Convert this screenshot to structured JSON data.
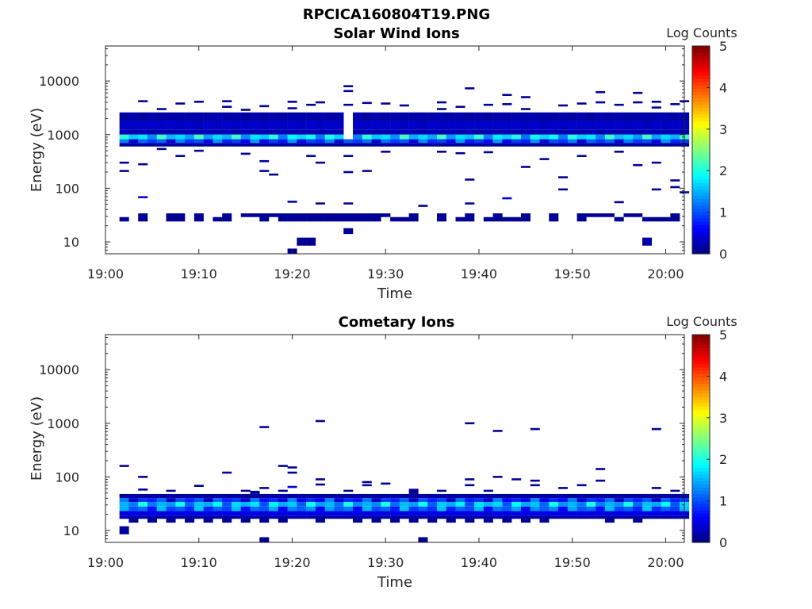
{
  "figure": {
    "title": "RPCICA160804T19.PNG"
  },
  "chart_data": [
    {
      "type": "heatmap",
      "title": "Solar Wind Ions",
      "xlabel": "Time",
      "ylabel": "Energy (eV)",
      "y_scale": "log",
      "xlim": [
        "19:00",
        "20:02"
      ],
      "ylim": [
        6,
        45000
      ],
      "x_ticks": [
        "19:00",
        "19:10",
        "19:20",
        "19:30",
        "19:40",
        "19:50",
        "20:00"
      ],
      "y_ticks": [
        "10",
        "100",
        "1000",
        "10000"
      ],
      "colorbar": {
        "label": "Log Counts",
        "range": [
          0,
          5
        ],
        "ticks": [
          "0",
          "1",
          "2",
          "3",
          "4",
          "5"
        ],
        "colormap": "jet"
      },
      "band_rows": [
        {
          "e_low": 1800,
          "e_high": 2600,
          "base": 0.15
        },
        {
          "e_low": 1250,
          "e_high": 1800,
          "base": 0.3
        },
        {
          "e_low": 1000,
          "e_high": 1250,
          "base": 0.2
        },
        {
          "e_low": 820,
          "e_high": 1000,
          "base": 1.6
        },
        {
          "e_low": 700,
          "e_high": 820,
          "base": 0.8
        },
        {
          "e_low": 600,
          "e_high": 700,
          "base": 0.1
        }
      ],
      "sparse": [
        [
          "19:02",
          300,
          0.1
        ],
        [
          "19:02",
          210,
          0.1
        ],
        [
          "19:04",
          4200,
          0.1
        ],
        [
          "19:04",
          280,
          0.1
        ],
        [
          "19:04",
          68,
          0.4
        ],
        [
          "19:06",
          3000,
          0.1
        ],
        [
          "19:06",
          540,
          0.1
        ],
        [
          "19:08",
          3800,
          0.1
        ],
        [
          "19:08",
          400,
          0.1
        ],
        [
          "19:10",
          4100,
          0.1
        ],
        [
          "19:10",
          500,
          0.1
        ],
        [
          "19:13",
          4200,
          0.1
        ],
        [
          "19:13",
          3300,
          0.1
        ],
        [
          "19:15",
          2900,
          0.1
        ],
        [
          "19:15",
          440,
          0.1
        ],
        [
          "19:17",
          3400,
          0.1
        ],
        [
          "19:17",
          320,
          0.1
        ],
        [
          "19:17",
          210,
          0.1
        ],
        [
          "19:18",
          180,
          0.1
        ],
        [
          "19:20",
          4100,
          0.1
        ],
        [
          "19:20",
          3100,
          0.1
        ],
        [
          "19:20",
          56,
          0.1
        ],
        [
          "19:22",
          3600,
          0.1
        ],
        [
          "19:22",
          400,
          0.1
        ],
        [
          "19:23",
          4000,
          0.1
        ],
        [
          "19:23",
          300,
          0.1
        ],
        [
          "19:23",
          52,
          0.1
        ],
        [
          "19:26",
          8000,
          0.1
        ],
        [
          "19:26",
          6500,
          0.1
        ],
        [
          "19:26",
          3600,
          0.1
        ],
        [
          "19:26",
          400,
          0.1
        ],
        [
          "19:26",
          200,
          0.1
        ],
        [
          "19:26",
          52,
          0.1
        ],
        [
          "19:28",
          3900,
          0.1
        ],
        [
          "19:28",
          210,
          0.1
        ],
        [
          "19:30",
          3800,
          0.1
        ],
        [
          "19:30",
          480,
          0.1
        ],
        [
          "19:32",
          3500,
          0.1
        ],
        [
          "19:34",
          47,
          0.1
        ],
        [
          "19:36",
          4000,
          0.1
        ],
        [
          "19:36",
          3000,
          0.1
        ],
        [
          "19:36",
          480,
          0.1
        ],
        [
          "19:38",
          3300,
          0.1
        ],
        [
          "19:38",
          450,
          0.1
        ],
        [
          "19:39",
          7300,
          0.1
        ],
        [
          "19:39",
          145,
          0.1
        ],
        [
          "19:39",
          52,
          0.1
        ],
        [
          "19:41",
          3600,
          0.1
        ],
        [
          "19:41",
          470,
          0.1
        ],
        [
          "19:43",
          5500,
          0.1
        ],
        [
          "19:43",
          3700,
          0.1
        ],
        [
          "19:43",
          65,
          0.4
        ],
        [
          "19:45",
          5000,
          0.1
        ],
        [
          "19:45",
          3000,
          0.1
        ],
        [
          "19:45",
          250,
          0.1
        ],
        [
          "19:47",
          350,
          0.1
        ],
        [
          "19:49",
          3500,
          0.1
        ],
        [
          "19:49",
          160,
          0.1
        ],
        [
          "19:49",
          95,
          0.1
        ],
        [
          "19:51",
          3800,
          0.1
        ],
        [
          "19:51",
          400,
          0.1
        ],
        [
          "19:53",
          6200,
          0.1
        ],
        [
          "19:53",
          4000,
          0.1
        ],
        [
          "19:55",
          3600,
          0.1
        ],
        [
          "19:55",
          480,
          0.1
        ],
        [
          "19:55",
          55,
          0.1
        ],
        [
          "19:57",
          6000,
          0.1
        ],
        [
          "19:57",
          4000,
          0.1
        ],
        [
          "19:57",
          270,
          0.1
        ],
        [
          "19:59",
          4100,
          0.1
        ],
        [
          "19:59",
          3200,
          0.1
        ],
        [
          "19:59",
          300,
          0.1
        ],
        [
          "19:59",
          95,
          0.1
        ],
        [
          "20:01",
          3700,
          0.1
        ],
        [
          "20:01",
          140,
          0.1
        ],
        [
          "20:01",
          105,
          0.1
        ],
        [
          "20:02",
          4200,
          0.1
        ],
        [
          "20:02",
          84,
          0.1
        ]
      ],
      "blocks": [
        [
          "19:02",
          24,
          29,
          0.1
        ],
        [
          "19:04",
          24,
          34,
          0.1
        ],
        [
          "19:07",
          24,
          34,
          0.1
        ],
        [
          "19:08",
          24,
          34,
          0.1
        ],
        [
          "19:10",
          24,
          34,
          0.1
        ],
        [
          "19:12",
          24,
          29,
          0.1
        ],
        [
          "19:13",
          24,
          34,
          0.1
        ],
        [
          "19:15",
          29,
          34,
          0.1
        ],
        [
          "19:16",
          29,
          34,
          0.1
        ],
        [
          "19:17",
          24,
          34,
          0.1
        ],
        [
          "19:18",
          29,
          34,
          0.1
        ],
        [
          "19:19",
          24,
          34,
          0.1
        ],
        [
          "19:20",
          24,
          34,
          0.1
        ],
        [
          "19:21",
          24,
          34,
          0.1
        ],
        [
          "19:22",
          24,
          34,
          0.1
        ],
        [
          "19:23",
          24,
          34,
          0.1
        ],
        [
          "19:24",
          24,
          34,
          0.1
        ],
        [
          "19:25",
          24,
          34,
          0.1
        ],
        [
          "19:26",
          24,
          34,
          0.1
        ],
        [
          "19:27",
          24,
          34,
          0.1
        ],
        [
          "19:28",
          24,
          34,
          0.1
        ],
        [
          "19:29",
          24,
          34,
          0.1
        ],
        [
          "19:30",
          29,
          34,
          0.1
        ],
        [
          "19:31",
          24,
          29,
          0.1
        ],
        [
          "19:32",
          24,
          29,
          0.1
        ],
        [
          "19:33",
          24,
          34,
          0.1
        ],
        [
          "19:36",
          24,
          34,
          0.1
        ],
        [
          "19:38",
          24,
          29,
          0.1
        ],
        [
          "19:39",
          24,
          34,
          0.1
        ],
        [
          "19:41",
          24,
          29,
          0.1
        ],
        [
          "19:42",
          24,
          34,
          0.1
        ],
        [
          "19:43",
          24,
          29,
          0.1
        ],
        [
          "19:44",
          24,
          29,
          0.1
        ],
        [
          "19:45",
          24,
          34,
          0.1
        ],
        [
          "19:48",
          24,
          34,
          0.1
        ],
        [
          "19:51",
          24,
          34,
          0.1
        ],
        [
          "19:52",
          29,
          34,
          0.1
        ],
        [
          "19:53",
          29,
          34,
          0.1
        ],
        [
          "19:54",
          29,
          34,
          0.1
        ],
        [
          "19:55",
          24,
          29,
          0.1
        ],
        [
          "19:56",
          29,
          34,
          0.1
        ],
        [
          "19:57",
          29,
          34,
          0.1
        ],
        [
          "19:58",
          24,
          29,
          0.1
        ],
        [
          "19:59",
          24,
          29,
          0.1
        ],
        [
          "20:00",
          24,
          29,
          0.1
        ],
        [
          "20:01",
          24,
          34,
          0.1
        ],
        [
          "19:26",
          14,
          18,
          0.1
        ],
        [
          "19:21",
          8.5,
          12,
          0.1
        ],
        [
          "19:22",
          8.5,
          12,
          0.1
        ],
        [
          "19:20",
          6,
          7.5,
          0.1
        ],
        [
          "19:58",
          8.5,
          12,
          0.2
        ]
      ]
    },
    {
      "type": "heatmap",
      "title": "Cometary Ions",
      "xlabel": "Time",
      "ylabel": "Energy (eV)",
      "y_scale": "log",
      "xlim": [
        "19:00",
        "20:02"
      ],
      "ylim": [
        6,
        45000
      ],
      "x_ticks": [
        "19:00",
        "19:10",
        "19:20",
        "19:30",
        "19:40",
        "19:50",
        "20:00"
      ],
      "y_ticks": [
        "10",
        "100",
        "1000",
        "10000"
      ],
      "colorbar": {
        "label": "Log Counts",
        "range": [
          0,
          5
        ],
        "ticks": [
          "0",
          "1",
          "2",
          "3",
          "4",
          "5"
        ],
        "colormap": "jet"
      },
      "band_rows": [
        {
          "e_low": 40,
          "e_high": 48,
          "base": 0.12
        },
        {
          "e_low": 34,
          "e_high": 40,
          "base": 0.7
        },
        {
          "e_low": 28,
          "e_high": 34,
          "base": 1.4
        },
        {
          "e_low": 23,
          "e_high": 28,
          "base": 1.0
        },
        {
          "e_low": 19,
          "e_high": 23,
          "base": 0.45
        },
        {
          "e_low": 16.5,
          "e_high": 19,
          "base": 0.15
        }
      ],
      "sparse": [
        [
          "19:02",
          160,
          0.1
        ],
        [
          "19:04",
          100,
          0.1
        ],
        [
          "19:04",
          58,
          0.1
        ],
        [
          "19:07",
          55,
          0.1
        ],
        [
          "19:10",
          68,
          0.1
        ],
        [
          "19:13",
          120,
          0.1
        ],
        [
          "19:15",
          55,
          0.1
        ],
        [
          "19:17",
          850,
          0.1
        ],
        [
          "19:17",
          62,
          0.1
        ],
        [
          "19:19",
          160,
          0.1
        ],
        [
          "19:19",
          55,
          0.1
        ],
        [
          "19:20",
          150,
          0.1
        ],
        [
          "19:20",
          120,
          0.1
        ],
        [
          "19:20",
          65,
          0.4
        ],
        [
          "19:23",
          1100,
          0.1
        ],
        [
          "19:23",
          90,
          0.1
        ],
        [
          "19:23",
          72,
          0.1
        ],
        [
          "19:26",
          55,
          0.1
        ],
        [
          "19:28",
          80,
          0.1
        ],
        [
          "19:28",
          70,
          0.1
        ],
        [
          "19:30",
          75,
          0.1
        ],
        [
          "19:36",
          55,
          0.1
        ],
        [
          "19:39",
          1000,
          0.1
        ],
        [
          "19:39",
          90,
          0.1
        ],
        [
          "19:39",
          70,
          0.1
        ],
        [
          "19:41",
          55,
          0.1
        ],
        [
          "19:42",
          720,
          0.1
        ],
        [
          "19:42",
          100,
          0.1
        ],
        [
          "19:44",
          90,
          0.1
        ],
        [
          "19:46",
          780,
          0.1
        ],
        [
          "19:46",
          85,
          0.1
        ],
        [
          "19:46",
          70,
          0.1
        ],
        [
          "19:49",
          62,
          0.1
        ],
        [
          "19:51",
          70,
          0.1
        ],
        [
          "19:53",
          140,
          0.1
        ],
        [
          "19:53",
          85,
          0.1
        ],
        [
          "19:59",
          780,
          0.1
        ],
        [
          "19:59",
          62,
          0.1
        ],
        [
          "20:01",
          55,
          0.1
        ]
      ],
      "blocks": [
        [
          "19:02",
          8.5,
          12,
          0.15
        ],
        [
          "19:03",
          14,
          17,
          0.1
        ],
        [
          "19:05",
          14,
          17,
          0.1
        ],
        [
          "19:07",
          14,
          17,
          0.1
        ],
        [
          "19:09",
          14,
          17,
          0.1
        ],
        [
          "19:11",
          14,
          17,
          0.1
        ],
        [
          "19:13",
          14,
          17,
          0.1
        ],
        [
          "19:15",
          14,
          17,
          0.1
        ],
        [
          "19:17",
          14,
          17,
          0.1
        ],
        [
          "19:19",
          14,
          17,
          0.1
        ],
        [
          "19:23",
          14,
          17,
          0.1
        ],
        [
          "19:27",
          14,
          17,
          0.1
        ],
        [
          "19:29",
          14,
          17,
          0.1
        ],
        [
          "19:31",
          14,
          17,
          0.1
        ],
        [
          "19:33",
          14,
          17,
          0.1
        ],
        [
          "19:35",
          14,
          17,
          0.1
        ],
        [
          "19:37",
          14,
          17,
          0.1
        ],
        [
          "19:39",
          14,
          17,
          0.1
        ],
        [
          "19:41",
          14,
          17,
          0.1
        ],
        [
          "19:43",
          14,
          17,
          0.1
        ],
        [
          "19:45",
          14,
          17,
          0.1
        ],
        [
          "19:47",
          14,
          17,
          0.1
        ],
        [
          "19:54",
          14,
          17,
          0.1
        ],
        [
          "19:57",
          14,
          17,
          0.1
        ],
        [
          "19:33",
          48,
          60,
          0.1
        ],
        [
          "19:16",
          48,
          55,
          0.1
        ],
        [
          "19:17",
          6,
          7.5,
          0.1
        ],
        [
          "19:34",
          6,
          7.5,
          0.1
        ]
      ]
    }
  ]
}
